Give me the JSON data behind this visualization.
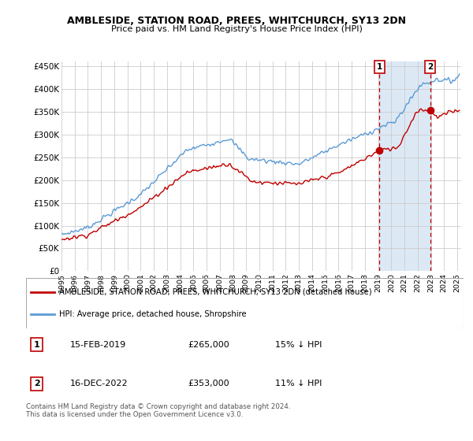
{
  "title": "AMBLESIDE, STATION ROAD, PREES, WHITCHURCH, SY13 2DN",
  "subtitle": "Price paid vs. HM Land Registry's House Price Index (HPI)",
  "ylim": [
    0,
    460000
  ],
  "yticks": [
    0,
    50000,
    100000,
    150000,
    200000,
    250000,
    300000,
    350000,
    400000,
    450000
  ],
  "ytick_labels": [
    "£0",
    "£50K",
    "£100K",
    "£150K",
    "£200K",
    "£250K",
    "£300K",
    "£350K",
    "£400K",
    "£450K"
  ],
  "xlim_start": 1995.0,
  "xlim_end": 2025.3,
  "hpi_color": "#5b9bd5",
  "price_color": "#c00000",
  "shade_color": "#dce9f5",
  "marker1_date": 2019.1,
  "marker1_price": 265000,
  "marker2_date": 2022.96,
  "marker2_price": 353000,
  "legend_entry1": "AMBLESIDE, STATION ROAD, PREES, WHITCHURCH, SY13 2DN (detached house)",
  "legend_entry2": "HPI: Average price, detached house, Shropshire",
  "table_row1": [
    "1",
    "15-FEB-2019",
    "£265,000",
    "15% ↓ HPI"
  ],
  "table_row2": [
    "2",
    "16-DEC-2022",
    "£353,000",
    "11% ↓ HPI"
  ],
  "footnote": "Contains HM Land Registry data © Crown copyright and database right 2024.\nThis data is licensed under the Open Government Licence v3.0.",
  "background_color": "#ffffff",
  "grid_color": "#cccccc"
}
